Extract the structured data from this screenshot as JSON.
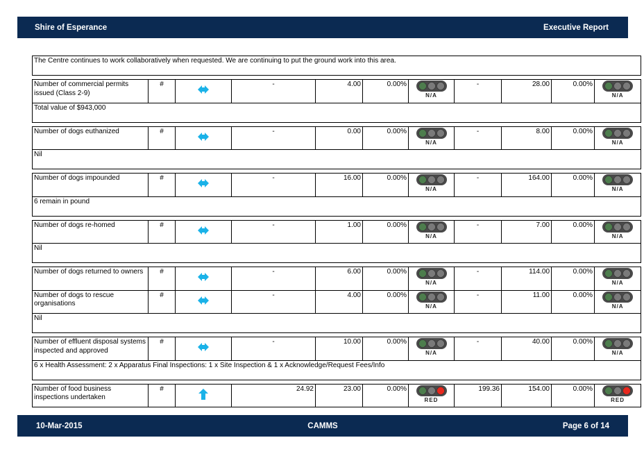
{
  "header": {
    "left": "Shire of Esperance",
    "right": "Executive Report"
  },
  "footer": {
    "date": "10-Mar-2015",
    "center": "CAMMS",
    "page": "Page 6 of 14"
  },
  "colors": {
    "bar": "#0b2a52",
    "arrow": "#1ab2e8",
    "light_grey": "#6e6e6e",
    "light_green_dim": "#4a7a4a",
    "light_red": "#e8281e"
  },
  "intro_note": "The Centre continues to work collaboratively when requested.  We are continuing to put the ground work into this area.",
  "rows": [
    {
      "name": "Number of commercial permits issued (Class 2-9)",
      "unit": "#",
      "trend_icon": "left-right-arrow-icon",
      "target1": "-",
      "actual1": "4.00",
      "pct1": "0.00%",
      "status1": "N/A",
      "target2": "-",
      "actual2": "28.00",
      "pct2": "0.00%",
      "status2": "N/A",
      "note": "Total value of $943,000"
    },
    {
      "name": "Number of dogs euthanized",
      "unit": "#",
      "trend_icon": "left-right-arrow-icon",
      "target1": "-",
      "actual1": "0.00",
      "pct1": "0.00%",
      "status1": "N/A",
      "target2": "-",
      "actual2": "8.00",
      "pct2": "0.00%",
      "status2": "N/A",
      "note": "Nil"
    },
    {
      "name": "Number of dogs impounded",
      "unit": "#",
      "trend_icon": "left-right-arrow-icon",
      "target1": "-",
      "actual1": "16.00",
      "pct1": "0.00%",
      "status1": "N/A",
      "target2": "-",
      "actual2": "164.00",
      "pct2": "0.00%",
      "status2": "N/A",
      "note": "6 remain in pound"
    },
    {
      "name": "Number of dogs re-homed",
      "unit": "#",
      "trend_icon": "left-right-arrow-icon",
      "target1": "-",
      "actual1": "1.00",
      "pct1": "0.00%",
      "status1": "N/A",
      "target2": "-",
      "actual2": "7.00",
      "pct2": "0.00%",
      "status2": "N/A",
      "note": "Nil"
    },
    {
      "name": "Number of dogs returned to owners",
      "unit": "#",
      "trend_icon": "left-right-arrow-icon",
      "target1": "-",
      "actual1": "6.00",
      "pct1": "0.00%",
      "status1": "N/A",
      "target2": "-",
      "actual2": "114.00",
      "pct2": "0.00%",
      "status2": "N/A",
      "note": null
    },
    {
      "name": "Number of dogs to rescue organisations",
      "unit": "#",
      "trend_icon": "left-right-arrow-icon",
      "target1": "-",
      "actual1": "4.00",
      "pct1": "0.00%",
      "status1": "N/A",
      "target2": "-",
      "actual2": "11.00",
      "pct2": "0.00%",
      "status2": "N/A",
      "note": "Nil"
    },
    {
      "name": "Number of effluent disposal systems inspected and approved",
      "unit": "#",
      "trend_icon": "left-right-arrow-icon",
      "target1": "-",
      "actual1": "10.00",
      "pct1": "0.00%",
      "status1": "N/A",
      "target2": "-",
      "actual2": "40.00",
      "pct2": "0.00%",
      "status2": "N/A",
      "note": "6 x Health Assessment: 2 x Apparatus Final Inspections: 1 x Site Inspection & 1 x Acknowledge/Request Fees/Info"
    },
    {
      "name": "Number of food business inspections undertaken",
      "unit": "#",
      "trend_icon": "up-arrow-icon",
      "target1": "24.92",
      "actual1": "23.00",
      "pct1": "0.00%",
      "status1": "RED",
      "target2": "199.36",
      "actual2": "154.00",
      "pct2": "0.00%",
      "status2": "RED",
      "note": null
    }
  ]
}
